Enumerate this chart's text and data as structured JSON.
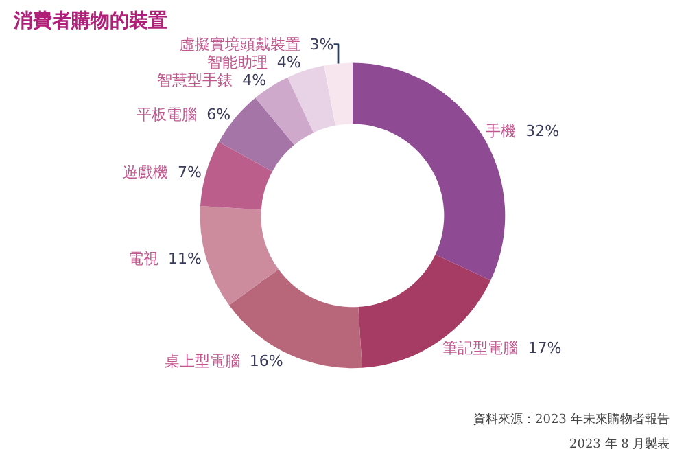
{
  "chart_data": {
    "type": "donut",
    "title": "消費者購物的裝置",
    "categories": [
      "手機",
      "筆記型電腦",
      "桌上型電腦",
      "電視",
      "遊戲機",
      "平板電腦",
      "智慧型手錶",
      "智能助理",
      "虛擬實境頭戴裝置"
    ],
    "values": [
      32,
      17,
      16,
      11,
      7,
      6,
      4,
      4,
      3
    ],
    "colors": [
      "#8e4a93",
      "#a63c63",
      "#b8677a",
      "#cc8c9e",
      "#bb5e8b",
      "#a675a8",
      "#cfa9cb",
      "#e7d3e5",
      "#f7e6ee"
    ],
    "value_labels": [
      "32%",
      "17%",
      "16%",
      "11%",
      "7%",
      "6%",
      "4%",
      "4%",
      "3%"
    ],
    "legend": false,
    "annotations": [
      "資料來源：2023 年未來購物者報告",
      "2023 年 8 月製表"
    ]
  }
}
